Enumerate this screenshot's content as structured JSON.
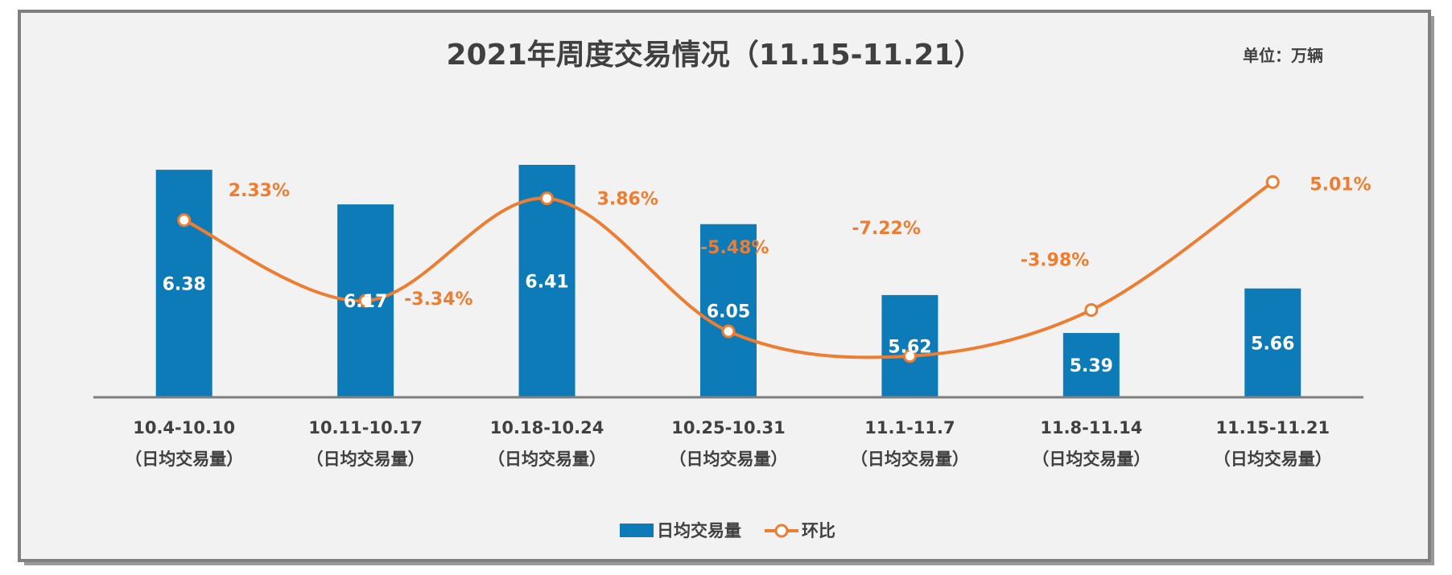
{
  "chart_data": {
    "type": "bar",
    "title": "2021年周度交易情况（11.15-11.21）",
    "unit_label": "单位：万辆",
    "categories": [
      {
        "range": "10.4-10.10",
        "note": "（日均交易量）"
      },
      {
        "range": "10.11-10.17",
        "note": "（日均交易量）"
      },
      {
        "range": "10.18-10.24",
        "note": "（日均交易量）"
      },
      {
        "range": "10.25-10.31",
        "note": "（日均交易量）"
      },
      {
        "range": "11.1-11.7",
        "note": "（日均交易量）"
      },
      {
        "range": "11.8-11.14",
        "note": "（日均交易量）"
      },
      {
        "range": "11.15-11.21",
        "note": "（日均交易量）"
      }
    ],
    "series": [
      {
        "name": "日均交易量",
        "type": "bar",
        "color": "#0e7bb9",
        "values": [
          6.38,
          6.17,
          6.41,
          6.05,
          5.62,
          5.39,
          5.66
        ],
        "labels": [
          "6.38",
          "6.17",
          "6.41",
          "6.05",
          "5.62",
          "5.39",
          "5.66"
        ]
      },
      {
        "name": "环比",
        "type": "line",
        "color": "#ed7d31",
        "values": [
          2.33,
          -3.34,
          3.86,
          -5.48,
          -7.22,
          -3.98,
          5.01
        ],
        "labels": [
          "2.33%",
          "-3.34%",
          "3.86%",
          "-5.48%",
          "-7.22%",
          "-3.98%",
          "5.01%"
        ]
      }
    ],
    "legend": {
      "position": "bottom-center"
    },
    "grid": false
  }
}
